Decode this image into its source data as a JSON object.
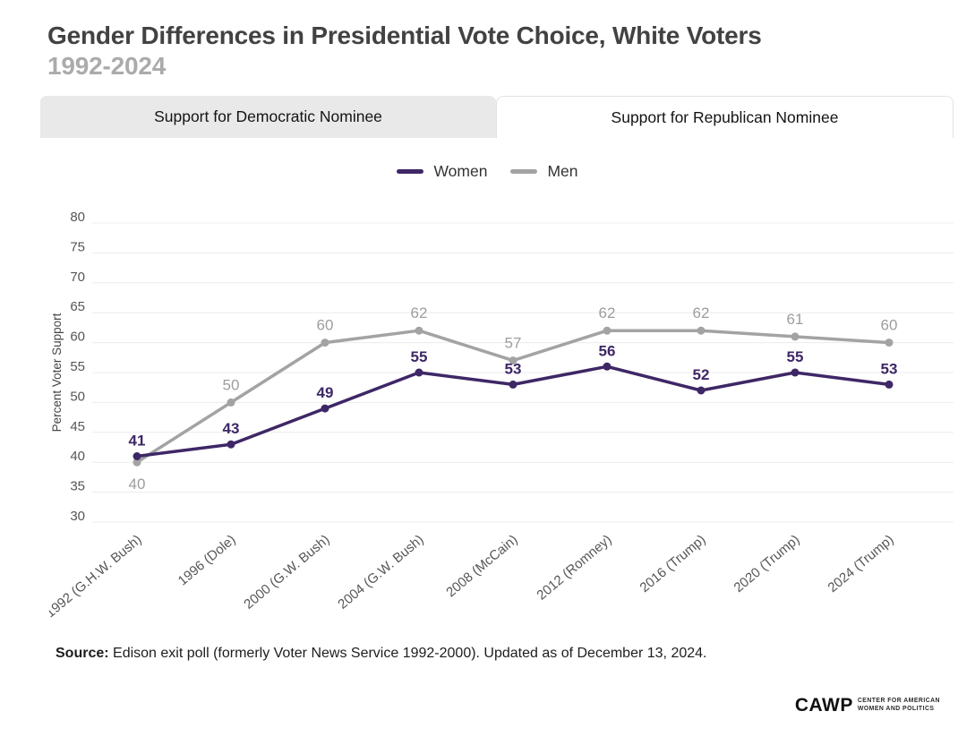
{
  "header": {
    "title": "Gender Differences in Presidential Vote Choice, White Voters",
    "subtitle": "1992-2024"
  },
  "tabs": [
    {
      "label": "Support for Democratic Nominee",
      "active": false
    },
    {
      "label": "Support for Republican Nominee",
      "active": true
    }
  ],
  "chart_data": {
    "type": "line",
    "categories": [
      "1992 (G.H.W. Bush)",
      "1996 (Dole)",
      "2000 (G.W. Bush)",
      "2004 (G.W. Bush)",
      "2008 (McCain)",
      "2012 (Romney)",
      "2016 (Trump)",
      "2020 (Trump)",
      "2024 (Trump)"
    ],
    "series": [
      {
        "name": "Women",
        "values": [
          41,
          43,
          49,
          55,
          53,
          56,
          52,
          55,
          53
        ],
        "color": "#3e2766",
        "label_color": "#3e2766"
      },
      {
        "name": "Men",
        "values": [
          40,
          50,
          60,
          62,
          57,
          62,
          62,
          61,
          60
        ],
        "color": "#a3a3a3",
        "label_color": "#9d9d9d"
      }
    ],
    "title": "",
    "xlabel": "",
    "ylabel": "Percent Voter Support",
    "ylim": [
      30,
      80
    ],
    "ytick_step": 5,
    "grid": true,
    "gridline_color": "#ececec",
    "tick_label_color": "#565656",
    "legend_position": "top-center"
  },
  "source": {
    "label": "Source:",
    "text": " Edison exit poll (formerly Voter News Service 1992-2000). Updated as of December 13, 2024."
  },
  "footer_logo": {
    "acronym": "CAWP",
    "line1": "CENTER FOR AMERICAN",
    "line2": "WOMEN AND POLITICS"
  }
}
